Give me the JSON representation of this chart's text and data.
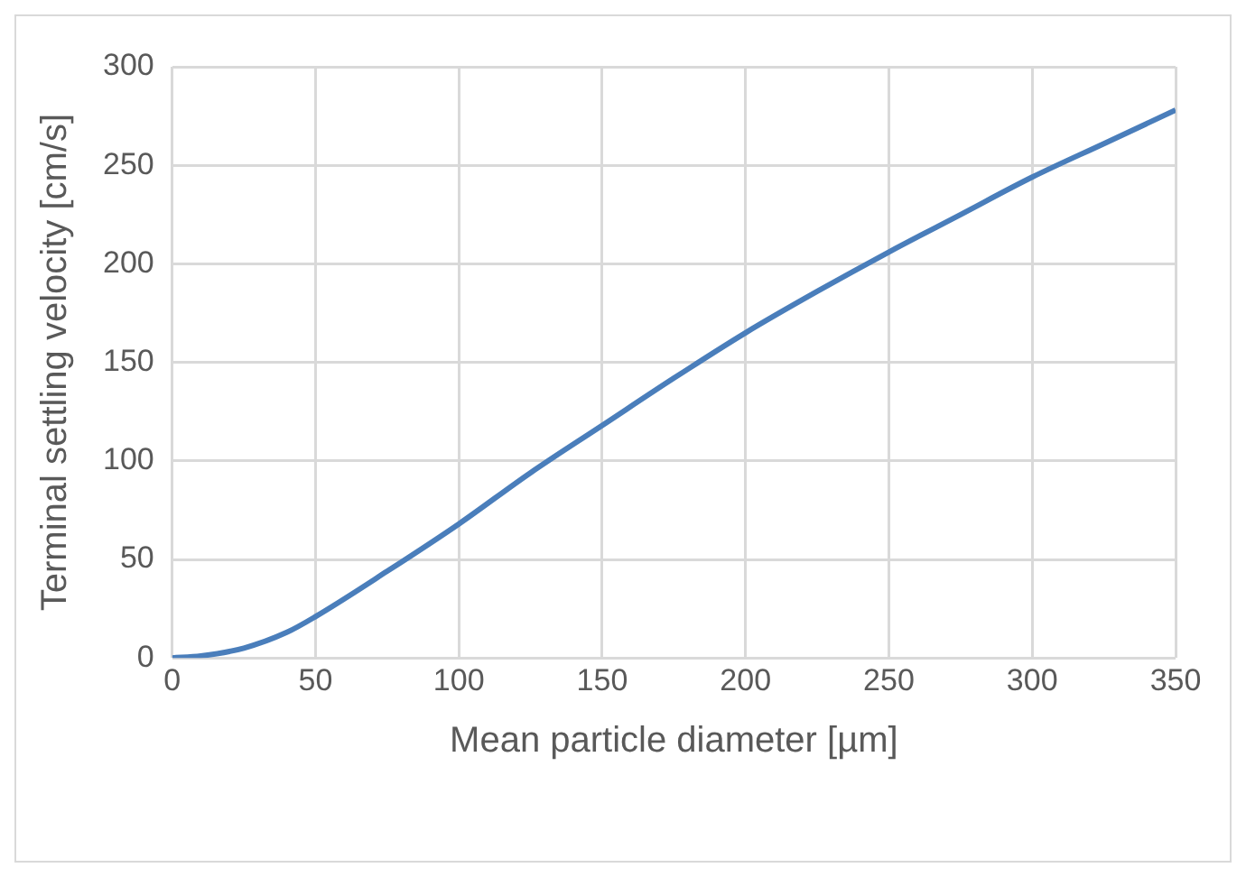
{
  "chart_data": {
    "type": "line",
    "xlabel": "Mean particle diameter [µm]",
    "ylabel": "Terminal settling velocity [cm/s]",
    "x": [
      0,
      10,
      25,
      40,
      50,
      75,
      100,
      125,
      150,
      175,
      200,
      225,
      250,
      275,
      300,
      325,
      350
    ],
    "series": [
      {
        "color": "#4a7ebb",
        "values": [
          0,
          1,
          5,
          13,
          21,
          44,
          68,
          94,
          118,
          142,
          165,
          186,
          206,
          225,
          244,
          261,
          278
        ]
      }
    ],
    "xlim": [
      0,
      350
    ],
    "xticks": [
      0,
      50,
      100,
      150,
      200,
      250,
      300,
      350
    ],
    "ylim": [
      0,
      300
    ],
    "yticks": [
      0,
      50,
      100,
      150,
      200,
      250,
      300
    ],
    "grid": true,
    "legend": false,
    "marker": "none",
    "line_style": "solid"
  }
}
